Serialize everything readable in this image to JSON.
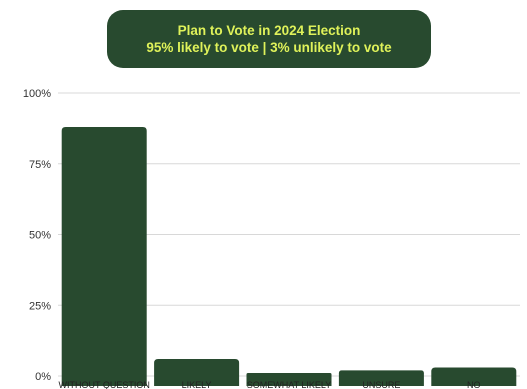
{
  "colors": {
    "bar": "#284a2f",
    "title_bg": "#284a2f",
    "title_text": "#dff25a",
    "grid": "#d8d8d8"
  },
  "chart_data": {
    "type": "bar",
    "title": "Plan to Vote in 2024 Election",
    "subtitle": "95% likely to vote | 3% unlikely to vote",
    "categories": [
      "WITHOUT QUESTION",
      "LIKELY",
      "SOMEWHAT LIKELY",
      "UNSURE",
      "NO"
    ],
    "values": [
      88,
      6,
      1,
      2,
      3
    ],
    "ylim": [
      0,
      100
    ],
    "yticks": [
      0,
      25,
      50,
      75,
      100
    ],
    "ytick_labels": [
      "0%",
      "25%",
      "50%",
      "75%",
      "100%"
    ],
    "grid": true,
    "legend": "none"
  }
}
